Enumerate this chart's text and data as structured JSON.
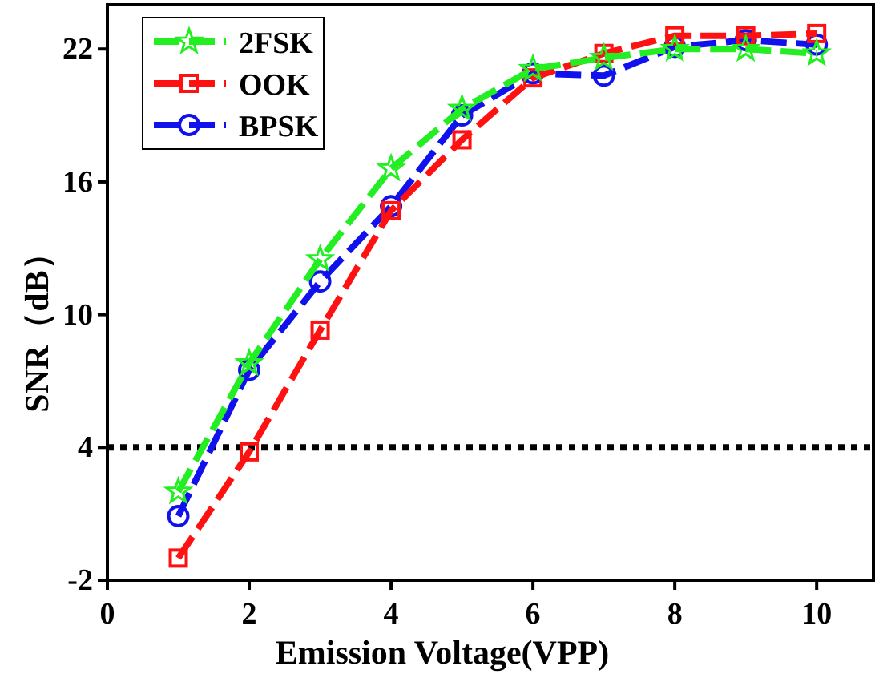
{
  "chart_data": {
    "type": "line",
    "xlabel": "Emission Voltage(VPP)",
    "ylabel": "SNR（dB）",
    "x": [
      1,
      2,
      3,
      4,
      5,
      6,
      7,
      8,
      9,
      10
    ],
    "xlim": [
      0,
      10.8
    ],
    "xticks": [
      0,
      2,
      4,
      6,
      8,
      10
    ],
    "ylim": [
      -2,
      24
    ],
    "yticks": [
      -2,
      4,
      10,
      16,
      22
    ],
    "series": [
      {
        "name": "2FSK",
        "color": "#22ee22",
        "marker": "star",
        "values": [
          2.0,
          7.8,
          12.5,
          16.6,
          19.3,
          21.1,
          21.6,
          22.0,
          22.0,
          21.8
        ]
      },
      {
        "name": "OOK",
        "color": "#ff1111",
        "marker": "square",
        "values": [
          -1.0,
          3.8,
          9.3,
          14.7,
          17.9,
          20.7,
          21.8,
          22.6,
          22.6,
          22.7
        ]
      },
      {
        "name": "BPSK",
        "color": "#1111ee",
        "marker": "circle",
        "values": [
          0.9,
          7.5,
          11.5,
          14.9,
          19.0,
          20.9,
          20.8,
          22.1,
          22.4,
          22.2
        ]
      }
    ],
    "ref_lines": [
      {
        "axis": "y",
        "value": 4,
        "color": "#000000",
        "line_style": "dotted"
      }
    ],
    "line_style": "dashed",
    "legend": "top left",
    "grid": false
  }
}
